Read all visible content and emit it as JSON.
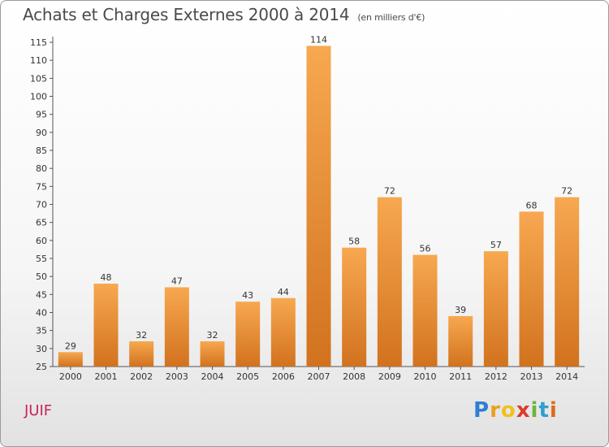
{
  "title": "Achats et Charges Externes 2000 à 2014",
  "subtitle": "(en milliers d'€)",
  "commune": "JUIF",
  "logo": {
    "letters": [
      "P",
      "r",
      "o",
      "x",
      "i",
      "t",
      "i"
    ],
    "colors": [
      "#2f7fd0",
      "#e8a21a",
      "#f0c020",
      "#d93c2e",
      "#6ab63c",
      "#2f9fd0",
      "#e06a1a"
    ]
  },
  "colors": {
    "bar_light": "#f7a850",
    "bar_dark": "#d2721e",
    "axis": "#555555",
    "title": "#4a4a4a",
    "commune": "#c8245c"
  },
  "chart_data": {
    "type": "bar",
    "title": "Achats et Charges Externes 2000 à 2014",
    "subtitle": "(en milliers d'€)",
    "categories": [
      "2000",
      "2001",
      "2002",
      "2003",
      "2004",
      "2005",
      "2006",
      "2007",
      "2008",
      "2009",
      "2010",
      "2011",
      "2012",
      "2013",
      "2014"
    ],
    "values": [
      29,
      48,
      32,
      47,
      32,
      43,
      44,
      114,
      58,
      72,
      56,
      39,
      57,
      68,
      72
    ],
    "ylim": [
      25,
      115
    ],
    "yticks": [
      25,
      30,
      35,
      40,
      45,
      50,
      55,
      60,
      65,
      70,
      75,
      80,
      85,
      90,
      95,
      100,
      105,
      110,
      115
    ],
    "grid": false,
    "legend": "none"
  }
}
